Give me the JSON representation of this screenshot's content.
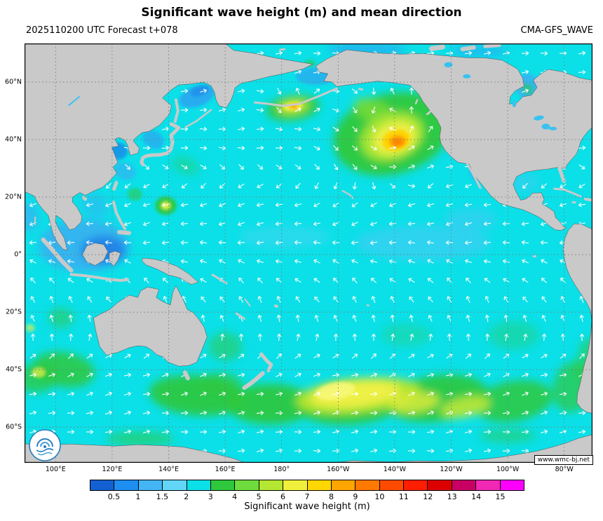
{
  "title": "Significant wave height (m) and mean direction",
  "header": {
    "left": "2025110200 UTC Forecast t+078",
    "right": "CMA-GFS_WAVE"
  },
  "map": {
    "lat_labels": [
      "60°N",
      "40°N",
      "20°N",
      "0°",
      "20°S",
      "40°S",
      "60°S"
    ],
    "lon_labels": [
      "100°E",
      "120°E",
      "140°E",
      "160°E",
      "180°",
      "160°W",
      "140°W",
      "120°W",
      "100°W",
      "80°W"
    ],
    "watermark": "www.wmc-bj.net",
    "land_color": "#c9c9c9",
    "ocean_color": "#0be0e8",
    "grid_color": "#787878",
    "arrow_color": "#ffffff"
  },
  "colorbar": {
    "label": "Significant wave height (m)",
    "ticks": [
      "0.5",
      "1",
      "1.5",
      "2",
      "3",
      "4",
      "5",
      "6",
      "7",
      "8",
      "9",
      "10",
      "11",
      "12",
      "13",
      "14",
      "15"
    ],
    "colors": [
      "#1460d2",
      "#1e8ef0",
      "#44b5f4",
      "#63d6f8",
      "#0be0e8",
      "#2fc83c",
      "#6edc3c",
      "#b4e632",
      "#f0f03c",
      "#ffd700",
      "#ffa500",
      "#ff7800",
      "#ff4b00",
      "#ff1e00",
      "#dc0000",
      "#c80064",
      "#f028b4",
      "#ff00ff"
    ]
  },
  "chart_data": {
    "type": "heatmap",
    "title": "Significant wave height (m) and mean direction",
    "init_time": "2025110200 UTC",
    "forecast_step": "t+078",
    "model": "CMA-GFS_WAVE",
    "units": "m",
    "x_axis": {
      "ticks": [
        "100°E",
        "120°E",
        "140°E",
        "160°E",
        "180°",
        "160°W",
        "140°W",
        "120°W",
        "100°W",
        "80°W"
      ],
      "approx_range_deg_east": [
        89,
        290
      ]
    },
    "y_axis": {
      "ticks": [
        "60°N",
        "40°N",
        "20°N",
        "0°",
        "20°S",
        "40°S",
        "60°S"
      ],
      "approx_range_deg_north": [
        -72,
        73
      ]
    },
    "colorbar_levels_m": [
      0.5,
      1,
      1.5,
      2,
      3,
      4,
      5,
      6,
      7,
      8,
      9,
      10,
      11,
      12,
      13,
      14,
      15
    ],
    "overlay": "mean wave direction arrows (white)",
    "features": [
      {
        "name": "Northeast Pacific storm swell maximum",
        "approx_location": "40°N 140°W",
        "max_wave_height_m": 9
      },
      {
        "name": "Secondary maximum near dateline south of Aleutians",
        "approx_location": "51°N 176°W",
        "max_wave_height_m": 8
      },
      {
        "name": "Southern Ocean swell band",
        "approx_location": "40°S-60°S across the South Pacific",
        "max_wave_height_m": 7
      },
      {
        "name": "Southern Indian Ocean swell southwest of Australia",
        "approx_location": "40°S 100°E",
        "max_wave_height_m": 6
      },
      {
        "name": "Tropical storm seas east of the Philippines",
        "approx_location": "17°N 139°E",
        "max_wave_height_m": 6
      },
      {
        "name": "Background open Pacific",
        "typical_wave_height_m": "2-3"
      },
      {
        "name": "Calm marginal seas (Indonesian seas, Yellow Sea, Sea of Okhotsk, Gulf of Mexico)",
        "typical_wave_height_m": "0.5-1.5"
      }
    ]
  }
}
